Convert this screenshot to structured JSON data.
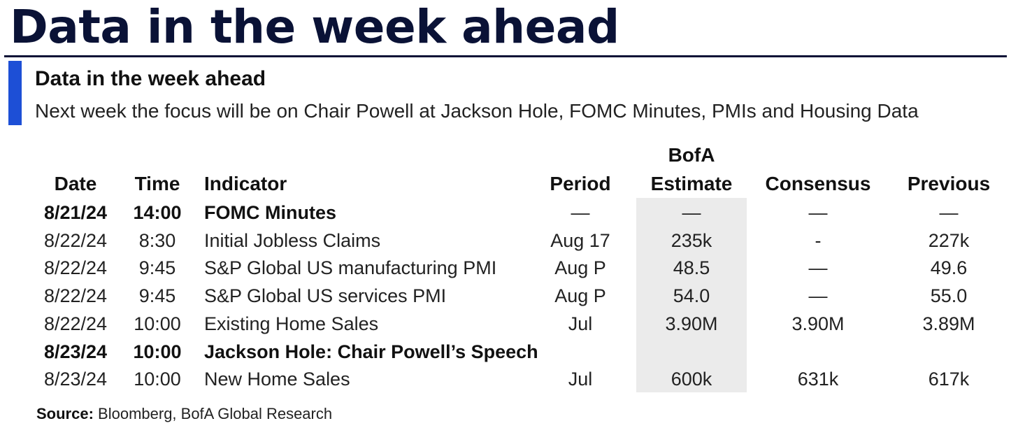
{
  "page": {
    "title": "Data in the week ahead",
    "accent_color": "#1d4fd6",
    "title_color": "#0a1236"
  },
  "exhibit": {
    "title": "Data in the week ahead",
    "subtitle": "Next week the focus will be on Chair Powell at Jackson Hole, FOMC Minutes, PMIs and Housing Data"
  },
  "table": {
    "headers": {
      "date": "Date",
      "time": "Time",
      "indicator": "Indicator",
      "period": "Period",
      "estimate_line1": "BofA",
      "estimate_line2": "Estimate",
      "consensus": "Consensus",
      "previous": "Previous"
    },
    "rows": [
      {
        "date": "8/21/24",
        "time": "14:00",
        "indicator": "FOMC Minutes",
        "period": "—",
        "estimate": "—",
        "consensus": "—",
        "previous": "—",
        "bold": true
      },
      {
        "date": "8/22/24",
        "time": "8:30",
        "indicator": "Initial Jobless Claims",
        "period": "Aug 17",
        "estimate": "235k",
        "consensus": "-",
        "previous": "227k",
        "bold": false
      },
      {
        "date": "8/22/24",
        "time": "9:45",
        "indicator": "S&P Global US manufacturing PMI",
        "period": "Aug P",
        "estimate": "48.5",
        "consensus": "—",
        "previous": "49.6",
        "bold": false
      },
      {
        "date": "8/22/24",
        "time": "9:45",
        "indicator": "S&P Global US services PMI",
        "period": "Aug P",
        "estimate": "54.0",
        "consensus": "—",
        "previous": "55.0",
        "bold": false
      },
      {
        "date": "8/22/24",
        "time": "10:00",
        "indicator": "Existing Home Sales",
        "period": "Jul",
        "estimate": "3.90M",
        "consensus": "3.90M",
        "previous": "3.89M",
        "bold": false
      },
      {
        "date": "8/23/24",
        "time": "10:00",
        "indicator": "Jackson Hole: Chair Powell’s Speech",
        "period": "",
        "estimate": "",
        "consensus": "",
        "previous": "",
        "bold": true
      },
      {
        "date": "8/23/24",
        "time": "10:00",
        "indicator": "New Home Sales",
        "period": "Jul",
        "estimate": "600k",
        "consensus": "631k",
        "previous": "617k",
        "bold": false
      }
    ]
  },
  "source": {
    "label": "Source:",
    "text": " Bloomberg, BofA Global Research"
  }
}
